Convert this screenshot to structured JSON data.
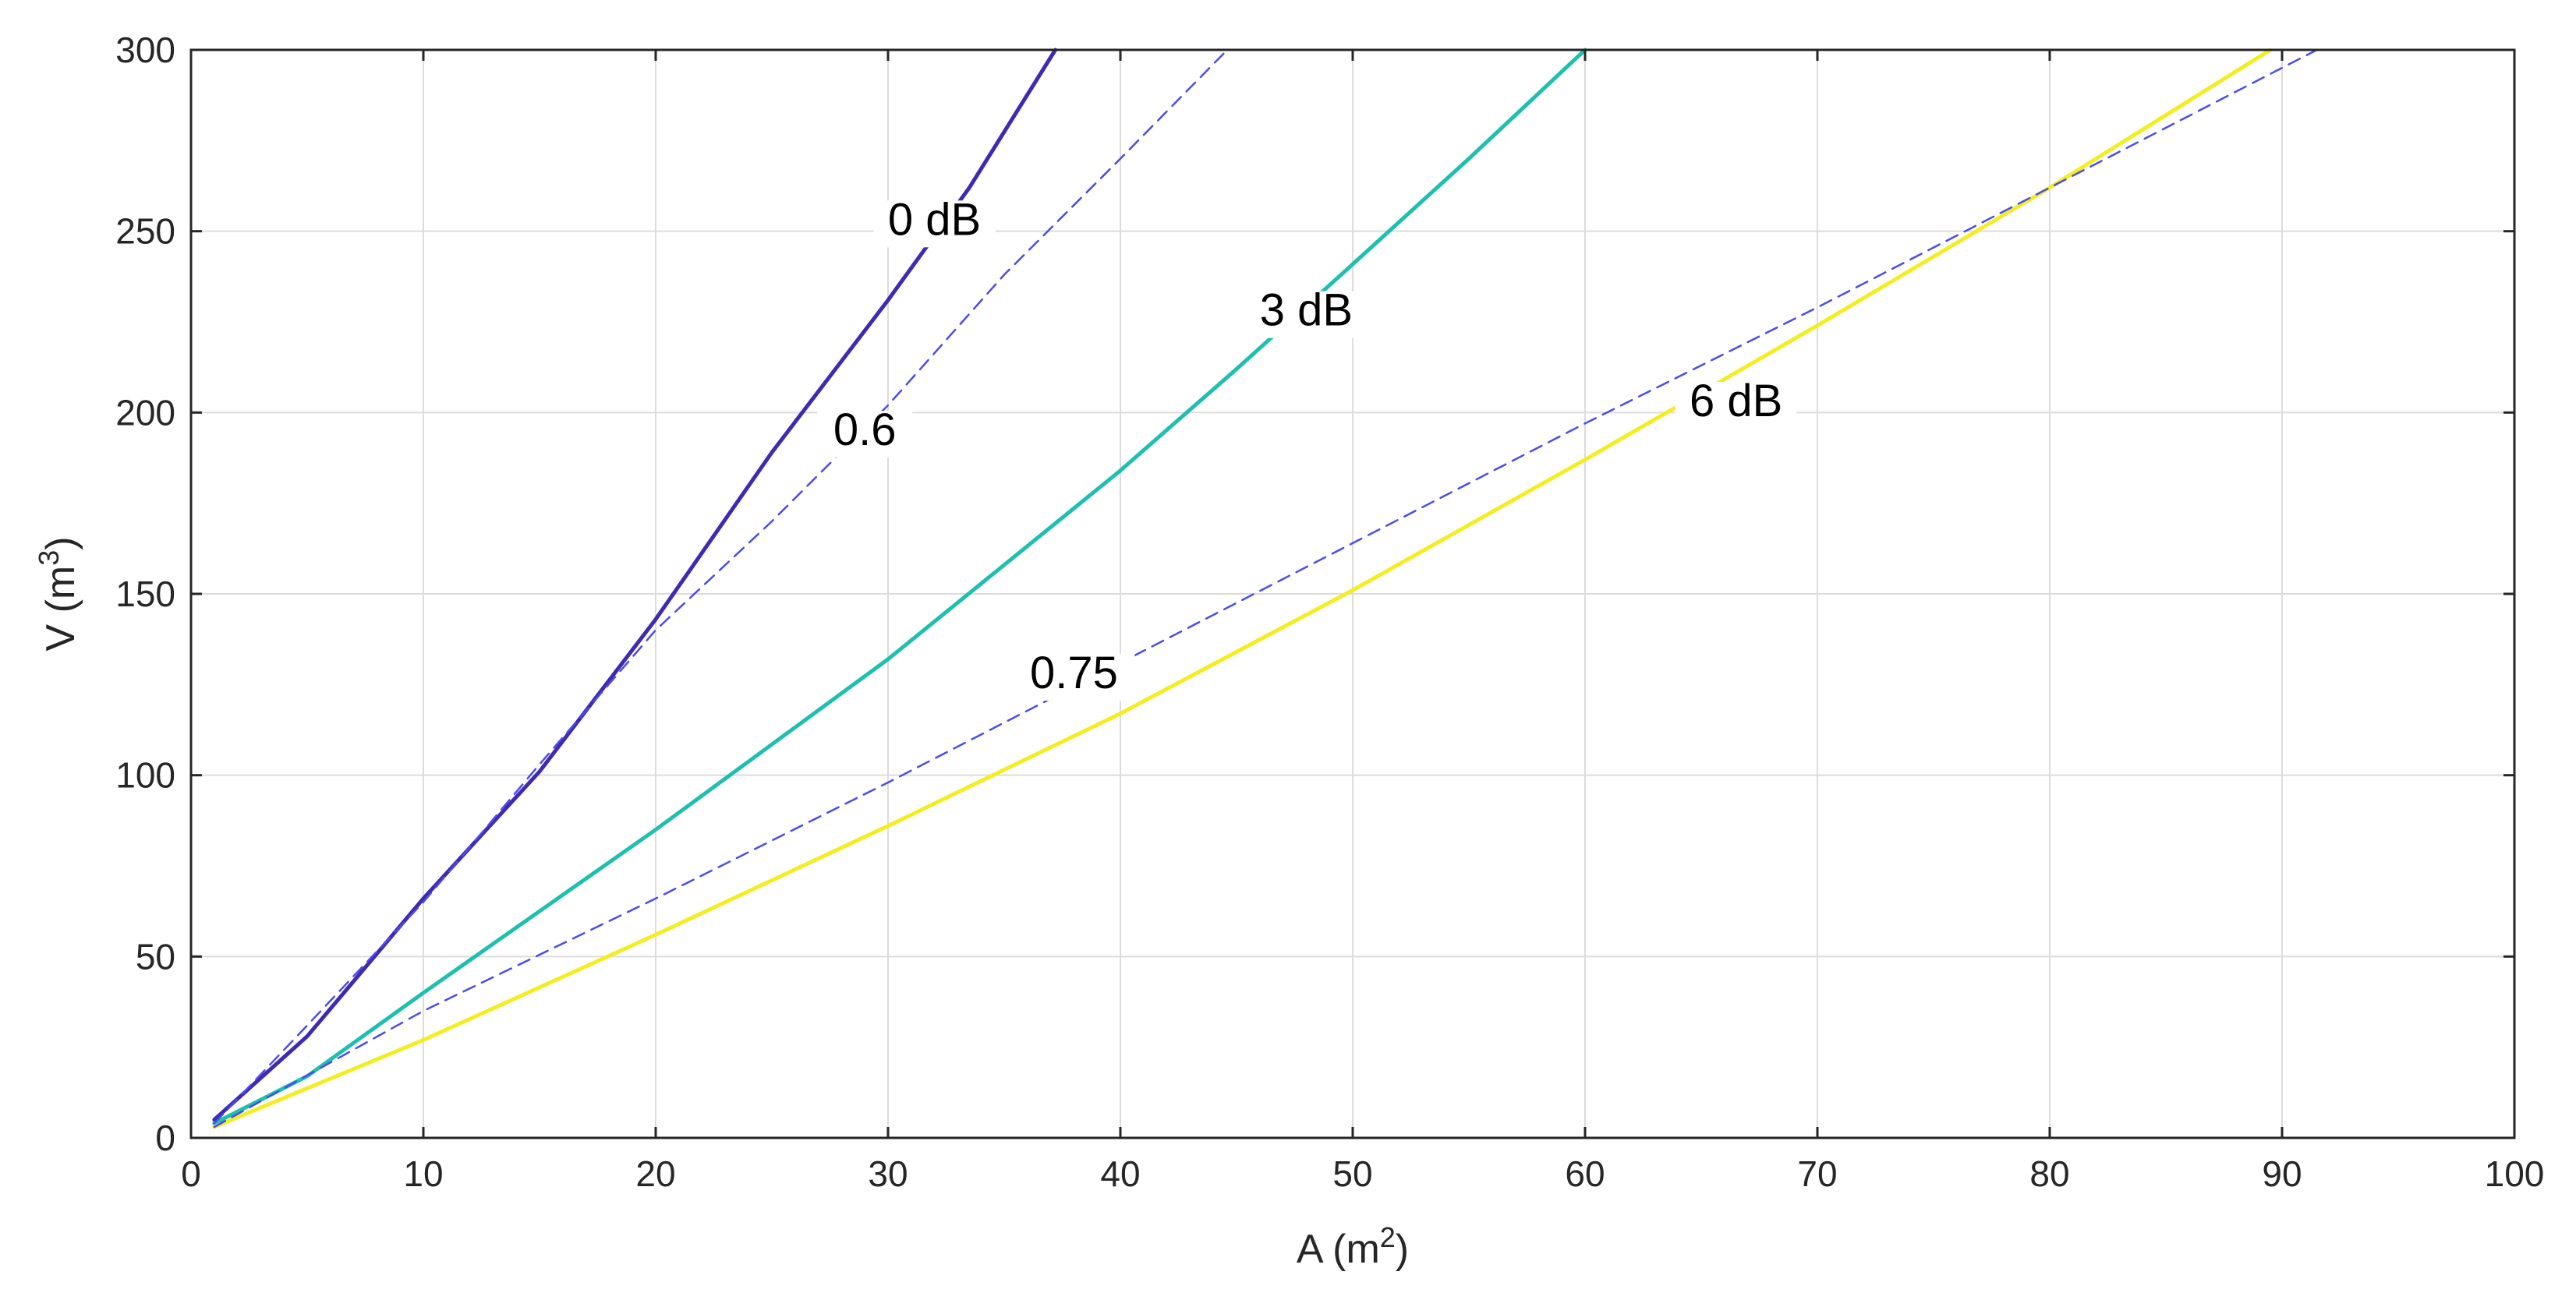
{
  "chart_data": {
    "type": "line",
    "title": "",
    "xlabel": "A (m",
    "xlabel_sup": "2",
    "xlabel_end": ")",
    "ylabel": "V (m",
    "ylabel_sup": "3",
    "ylabel_end": ")",
    "xlim": [
      0,
      100
    ],
    "ylim": [
      0,
      300
    ],
    "x_ticks": [
      0,
      10,
      20,
      30,
      40,
      50,
      60,
      70,
      80,
      90,
      100
    ],
    "y_ticks": [
      0,
      50,
      100,
      150,
      200,
      250,
      300
    ],
    "grid": true,
    "series": [
      {
        "name": "0 dB",
        "color": "#3f2ab0",
        "style": "solid",
        "points": [
          [
            1,
            5
          ],
          [
            5,
            28
          ],
          [
            10,
            66
          ],
          [
            15,
            101
          ],
          [
            20,
            143
          ],
          [
            25,
            189
          ],
          [
            30,
            231
          ],
          [
            33.5,
            262
          ],
          [
            37.2,
            300
          ]
        ],
        "label": {
          "text": "0 dB",
          "x": 32,
          "y": 249
        }
      },
      {
        "name": "3 dB",
        "color": "#1fbfb0",
        "style": "solid",
        "points": [
          [
            1,
            4
          ],
          [
            5,
            17
          ],
          [
            10,
            40
          ],
          [
            20,
            85
          ],
          [
            30,
            132
          ],
          [
            40,
            184
          ],
          [
            45,
            212
          ],
          [
            49.5,
            238
          ],
          [
            55,
            270
          ],
          [
            60,
            300
          ]
        ],
        "label": {
          "text": "3 dB",
          "x": 48,
          "y": 224
        }
      },
      {
        "name": "6 dB",
        "color": "#f2ee22",
        "style": "solid",
        "points": [
          [
            1,
            3
          ],
          [
            10,
            27
          ],
          [
            20,
            56
          ],
          [
            30,
            86
          ],
          [
            40,
            117
          ],
          [
            50,
            151
          ],
          [
            60,
            187
          ],
          [
            70,
            224
          ],
          [
            80,
            262
          ],
          [
            89.5,
            300
          ]
        ],
        "label": {
          "text": "6 dB",
          "x": 66.5,
          "y": 199
        }
      },
      {
        "name": "0.6",
        "color": "#4b4bee",
        "style": "dashed",
        "points": [
          [
            1,
            4
          ],
          [
            5,
            31
          ],
          [
            10,
            65
          ],
          [
            15,
            103
          ],
          [
            20,
            140
          ],
          [
            25,
            170
          ],
          [
            30,
            202
          ],
          [
            35,
            238
          ],
          [
            40,
            270
          ],
          [
            44.6,
            300
          ]
        ],
        "label": {
          "text": "0.6",
          "x": 29,
          "y": 191
        }
      },
      {
        "name": "0.75",
        "color": "#4b4bee",
        "style": "dashed",
        "points": [
          [
            1,
            3
          ],
          [
            10,
            35
          ],
          [
            20,
            66
          ],
          [
            30,
            98
          ],
          [
            40,
            131
          ],
          [
            50,
            164
          ],
          [
            60,
            197
          ],
          [
            70,
            229
          ],
          [
            80,
            262
          ],
          [
            91.5,
            300
          ]
        ],
        "label": {
          "text": "0.75",
          "x": 38,
          "y": 124
        }
      }
    ]
  }
}
